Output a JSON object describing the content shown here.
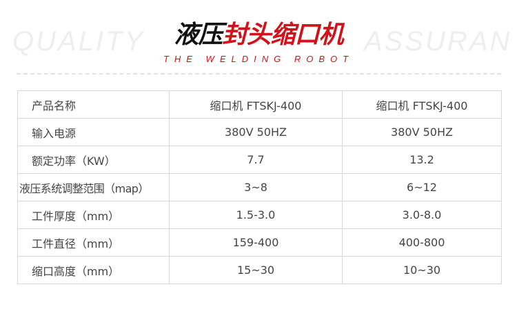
{
  "watermark": {
    "left": "QUALITY",
    "right": "ASSURAN"
  },
  "header": {
    "title_black": "液压",
    "title_red": "封头缩口机",
    "subtitle": "THE WELDING ROBOT"
  },
  "colors": {
    "accent": "#d0121a"
  },
  "table": {
    "rows": [
      [
        "产品名称",
        "缩口机 FTSKJ-400",
        "缩口机 FTSKJ-400"
      ],
      [
        "输入电源",
        "380V 50HZ",
        "380V 50HZ"
      ],
      [
        "额定功率（KW）",
        "7.7",
        "13.2"
      ],
      [
        "液压系统调整范围（map）",
        "3~8",
        "6~12"
      ],
      [
        "工件厚度（mm）",
        "1.5-3.0",
        "3.0-8.0"
      ],
      [
        "工件直径（mm）",
        "159-400",
        "400-800"
      ],
      [
        "缩口高度（mm）",
        "15~30",
        "10~30"
      ]
    ]
  }
}
